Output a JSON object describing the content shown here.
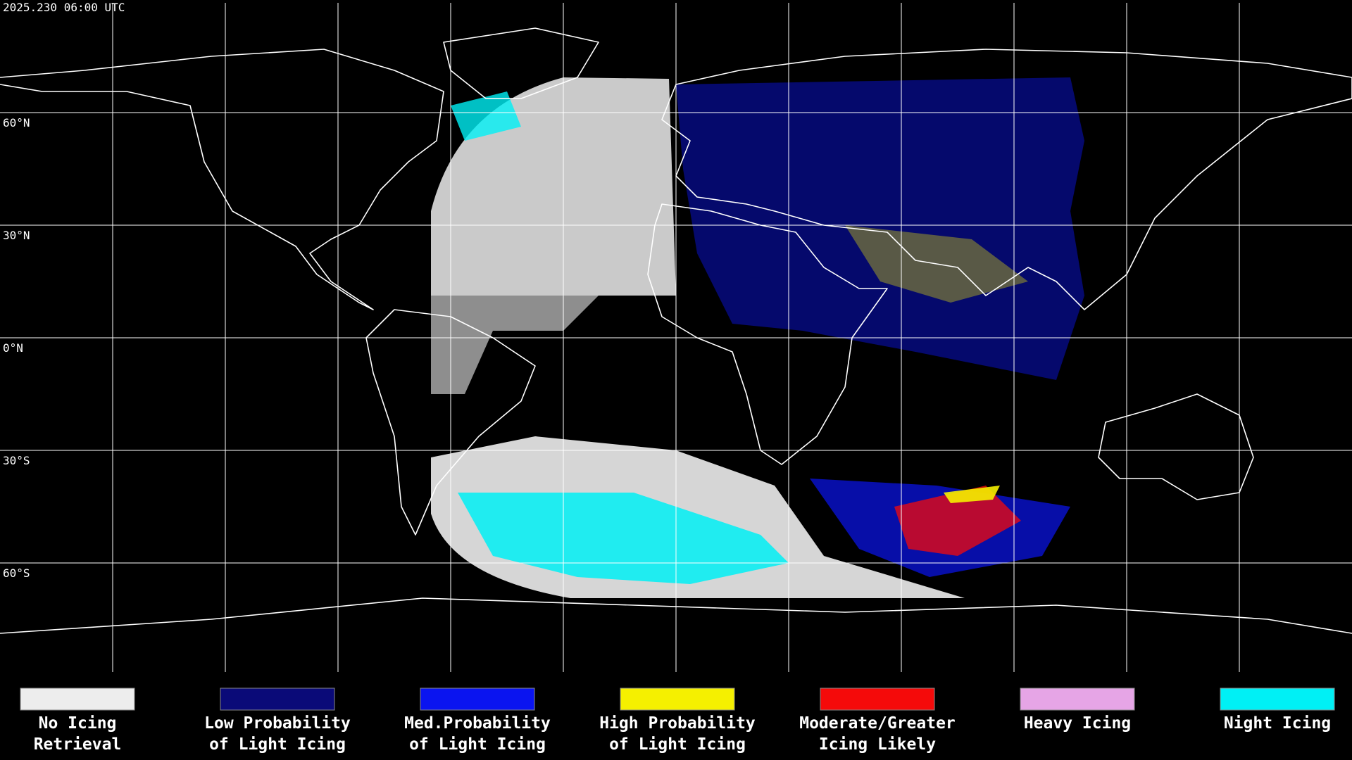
{
  "header": {
    "timestamp": "2025.230 06:00 UTC"
  },
  "map": {
    "latitude_lines": [
      {
        "value": 60,
        "label": "60°N"
      },
      {
        "value": 30,
        "label": "30°N"
      },
      {
        "value": 0,
        "label": "0°N"
      },
      {
        "value": -30,
        "label": "30°S"
      },
      {
        "value": -60,
        "label": "60°S"
      }
    ]
  },
  "legend": {
    "items": [
      {
        "label_lines": [
          "No Icing",
          "Retrieval"
        ],
        "color": "#ededed"
      },
      {
        "label_lines": [
          "Low Probability",
          "of Light Icing"
        ],
        "color": "#0a0a78"
      },
      {
        "label_lines": [
          "Med.Probability",
          "of Light Icing"
        ],
        "color": "#0a14f0"
      },
      {
        "label_lines": [
          "High Probability",
          "of Light Icing"
        ],
        "color": "#f5f000"
      },
      {
        "label_lines": [
          "Moderate/Greater",
          "Icing Likely"
        ],
        "color": "#f50a0a"
      },
      {
        "label_lines": [
          "Heavy Icing"
        ],
        "color": "#e6a5e6"
      },
      {
        "label_lines": [
          "Night Icing"
        ],
        "color": "#00f0f5"
      }
    ]
  }
}
